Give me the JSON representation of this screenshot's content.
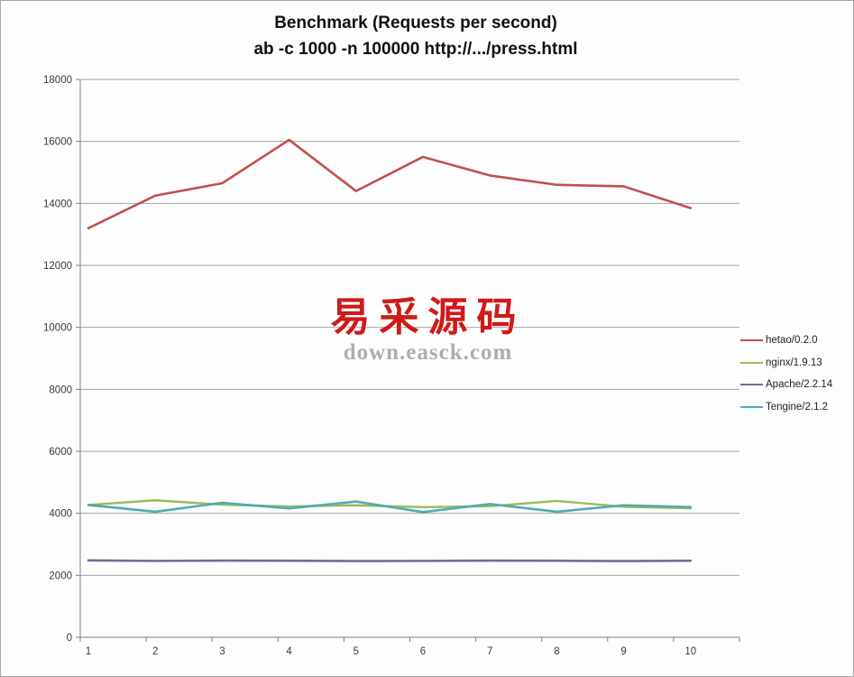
{
  "title": {
    "line1": "Benchmark (Requests per second)",
    "line2": "ab -c 1000 -n 100000 http://.../press.html"
  },
  "watermark": {
    "cn_text": "易采源码",
    "domain_text": "down.easck.com",
    "cn_color": "#ce1a1a",
    "domain_color": "#aeaeae"
  },
  "colors": {
    "grid": "#a5a5a5",
    "axis": "#808080",
    "tick_label": "#3b3b3b",
    "background": "#fdfdfd"
  },
  "chart_data": {
    "type": "line",
    "title": "Benchmark (Requests per second)",
    "subtitle": "ab -c 1000 -n 100000 http://.../press.html",
    "categories": [
      "1",
      "2",
      "3",
      "4",
      "5",
      "6",
      "7",
      "8",
      "9",
      "10"
    ],
    "series": [
      {
        "name": "hetao/0.2.0",
        "color": "#C0504D",
        "width": 2.6,
        "values": [
          13200,
          14250,
          14650,
          16050,
          14400,
          15500,
          14900,
          14600,
          14550,
          13850
        ]
      },
      {
        "name": "nginx/1.9.13",
        "color": "#9BBB59",
        "width": 2.4,
        "values": [
          4270,
          4420,
          4280,
          4220,
          4260,
          4200,
          4230,
          4400,
          4210,
          4160
        ]
      },
      {
        "name": "Apache/2.2.14",
        "color": "#6E6E9E",
        "width": 2.6,
        "values": [
          2480,
          2465,
          2475,
          2470,
          2460,
          2465,
          2475,
          2470,
          2460,
          2470
        ]
      },
      {
        "name": "Tengine/2.1.2",
        "color": "#4DACB0",
        "width": 2.6,
        "values": [
          4270,
          4050,
          4340,
          4160,
          4380,
          4040,
          4300,
          4050,
          4260,
          4200
        ]
      }
    ],
    "xlabel": "",
    "ylabel": "",
    "ylim": [
      0,
      18000
    ],
    "ytick_step": 2000,
    "grid": true,
    "legend_position": "right"
  }
}
